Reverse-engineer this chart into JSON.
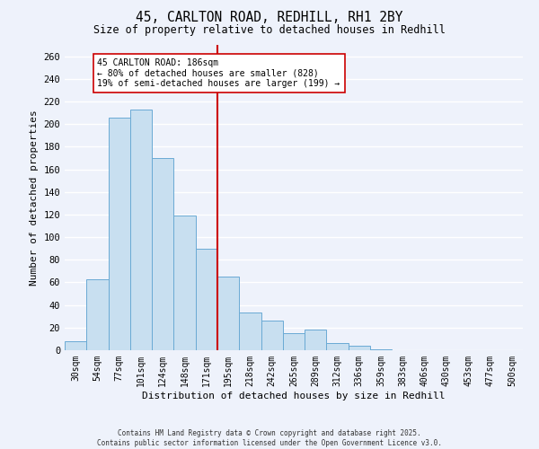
{
  "title": "45, CARLTON ROAD, REDHILL, RH1 2BY",
  "subtitle": "Size of property relative to detached houses in Redhill",
  "xlabel": "Distribution of detached houses by size in Redhill",
  "ylabel": "Number of detached properties",
  "bar_labels": [
    "30sqm",
    "54sqm",
    "77sqm",
    "101sqm",
    "124sqm",
    "148sqm",
    "171sqm",
    "195sqm",
    "218sqm",
    "242sqm",
    "265sqm",
    "289sqm",
    "312sqm",
    "336sqm",
    "359sqm",
    "383sqm",
    "406sqm",
    "430sqm",
    "453sqm",
    "477sqm",
    "500sqm"
  ],
  "bar_values": [
    8,
    63,
    206,
    213,
    170,
    119,
    90,
    65,
    33,
    26,
    15,
    18,
    6,
    4,
    1,
    0,
    0,
    0,
    0,
    0,
    0
  ],
  "bar_color": "#c8dff0",
  "bar_edge_color": "#6aaad4",
  "background_color": "#eef2fb",
  "grid_color": "#ffffff",
  "vline_color": "#cc0000",
  "annotation_title": "45 CARLTON ROAD: 186sqm",
  "annotation_line1": "← 80% of detached houses are smaller (828)",
  "annotation_line2": "19% of semi-detached houses are larger (199) →",
  "annotation_box_color": "#ffffff",
  "annotation_box_edge": "#cc0000",
  "ylim": [
    0,
    270
  ],
  "yticks": [
    0,
    20,
    40,
    60,
    80,
    100,
    120,
    140,
    160,
    180,
    200,
    220,
    240,
    260
  ],
  "footer1": "Contains HM Land Registry data © Crown copyright and database right 2025.",
  "footer2": "Contains public sector information licensed under the Open Government Licence v3.0."
}
